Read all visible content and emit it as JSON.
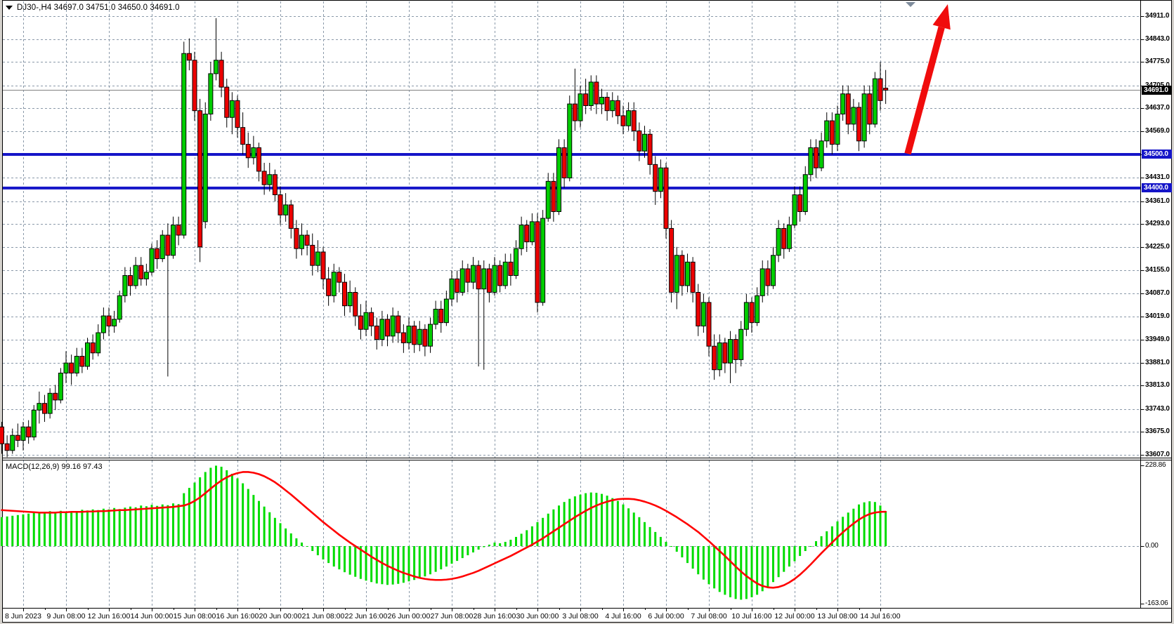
{
  "window": {
    "title": "DJ30-,H4  34697.0 34751.0 34650.0 34691.0",
    "symbol": "DJ30-",
    "timeframe": "H4"
  },
  "price_axis": {
    "ticks": [
      "34911.0",
      "34843.0",
      "34775.0",
      "34705.0",
      "34637.0",
      "34569.0",
      "34500.0",
      "34431.0",
      "34361.0",
      "34293.0",
      "34225.0",
      "34155.0",
      "34087.0",
      "34019.0",
      "33949.0",
      "33881.0",
      "33813.0",
      "33743.0",
      "33675.0",
      "33607.0"
    ],
    "tick_values": [
      34911,
      34843,
      34775,
      34705,
      34637,
      34569,
      34500,
      34431,
      34361,
      34293,
      34225,
      34155,
      34087,
      34019,
      33949,
      33881,
      33813,
      33743,
      33675,
      33607
    ],
    "current_price_label": "34691.0",
    "current_price_value": 34691.0
  },
  "levels": [
    {
      "label": "34500.0",
      "value": 34500
    },
    {
      "label": "34400.0",
      "value": 34400
    }
  ],
  "macd_panel": {
    "label": "MACD(12,26,9) 99.16 97.43",
    "axis_labels": [
      "228.86",
      "0.00",
      "-163.06"
    ],
    "axis_values": [
      228.86,
      0,
      -163.06
    ]
  },
  "time_axis": {
    "labels": [
      "8 Jun 2023",
      "9 Jun 08:00",
      "12 Jun 16:00",
      "14 Jun 00:00",
      "15 Jun 08:00",
      "16 Jun 16:00",
      "20 Jun 00:00",
      "21 Jun 08:00",
      "22 Jun 16:00",
      "26 Jun 00:00",
      "27 Jun 08:00",
      "28 Jun 16:00",
      "30 Jun 00:00",
      "3 Jul 08:00",
      "4 Jul 16:00",
      "6 Jul 00:00",
      "7 Jul 08:00",
      "10 Jul 16:00",
      "12 Jul 00:00",
      "13 Jul 08:00",
      "14 Jul 16:00"
    ]
  },
  "annotations": {
    "arrow": {
      "type": "up-arrow",
      "color": "#F00C0C"
    },
    "scroll_marker": {
      "type": "triangle-down",
      "color": "#7E8C9C"
    }
  },
  "colors": {
    "background": "#FFFFFF",
    "frame": "#D6D3CE",
    "border": "#000000",
    "grid": "#8A99A9",
    "bull": "#00CD00",
    "bear": "#EC0000",
    "wick": "#000000",
    "level_line": "#1515C8",
    "current_price_line": "#808080",
    "badge_current_bg": "#000000",
    "badge_level_bg": "#1515C8",
    "histogram": "#00DC00",
    "signal_line": "#FF0000"
  },
  "chart_data": {
    "type": "candlestick",
    "title": "DJ30- H4 with MACD(12,26,9)",
    "ohlc_current": {
      "open": 34697.0,
      "high": 34751.0,
      "low": 34650.0,
      "close": 34691.0
    },
    "price_range": [
      33607,
      34911
    ],
    "horizontal_lines": [
      34500,
      34400
    ],
    "grid_label_stride": 8,
    "candles": [
      [
        33690,
        33705,
        33610,
        33640
      ],
      [
        33640,
        33665,
        33600,
        33620
      ],
      [
        33620,
        33685,
        33610,
        33665
      ],
      [
        33665,
        33700,
        33630,
        33650
      ],
      [
        33650,
        33705,
        33620,
        33690
      ],
      [
        33690,
        33710,
        33640,
        33660
      ],
      [
        33660,
        33755,
        33650,
        33740
      ],
      [
        33740,
        33795,
        33700,
        33760
      ],
      [
        33760,
        33785,
        33705,
        33730
      ],
      [
        33730,
        33805,
        33715,
        33790
      ],
      [
        33790,
        33815,
        33740,
        33770
      ],
      [
        33770,
        33865,
        33760,
        33850
      ],
      [
        33850,
        33915,
        33820,
        33880
      ],
      [
        33880,
        33905,
        33815,
        33850
      ],
      [
        33850,
        33925,
        33840,
        33900
      ],
      [
        33900,
        33925,
        33850,
        33870
      ],
      [
        33870,
        33955,
        33860,
        33940
      ],
      [
        33940,
        33965,
        33890,
        33910
      ],
      [
        33910,
        33995,
        33900,
        33970
      ],
      [
        33970,
        34045,
        33950,
        34020
      ],
      [
        34020,
        34045,
        33960,
        33990
      ],
      [
        33990,
        34035,
        33970,
        34010
      ],
      [
        34010,
        34095,
        34000,
        34080
      ],
      [
        34080,
        34165,
        34060,
        34140
      ],
      [
        34140,
        34165,
        34080,
        34110
      ],
      [
        34110,
        34195,
        34100,
        34170
      ],
      [
        34170,
        34195,
        34110,
        34130
      ],
      [
        34130,
        34175,
        34110,
        34150
      ],
      [
        34150,
        34235,
        34140,
        34220
      ],
      [
        34220,
        34245,
        34160,
        34190
      ],
      [
        34190,
        34275,
        34180,
        34260
      ],
      [
        34260,
        34295,
        33840,
        34200
      ],
      [
        34200,
        34315,
        34190,
        34290
      ],
      [
        34290,
        34315,
        34230,
        34260
      ],
      [
        34260,
        34835,
        34250,
        34800
      ],
      [
        34800,
        34845,
        34750,
        34780
      ],
      [
        34780,
        34805,
        34600,
        34630
      ],
      [
        34630,
        34665,
        34180,
        34225
      ],
      [
        34300,
        34655,
        34280,
        34620
      ],
      [
        34620,
        34775,
        34600,
        34740
      ],
      [
        34740,
        34905,
        34720,
        34780
      ],
      [
        34780,
        34805,
        34670,
        34700
      ],
      [
        34700,
        34725,
        34580,
        34610
      ],
      [
        34610,
        34685,
        34560,
        34660
      ],
      [
        34660,
        34675,
        34550,
        34580
      ],
      [
        34580,
        34625,
        34500,
        34530
      ],
      [
        34530,
        34565,
        34460,
        34490
      ],
      [
        34490,
        34555,
        34470,
        34520
      ],
      [
        34520,
        34535,
        34420,
        34450
      ],
      [
        34450,
        34475,
        34380,
        34410
      ],
      [
        34410,
        34475,
        34390,
        34440
      ],
      [
        34440,
        34455,
        34360,
        34380
      ],
      [
        34380,
        34405,
        34290,
        34320
      ],
      [
        34320,
        34385,
        34300,
        34350
      ],
      [
        34350,
        34365,
        34250,
        34280
      ],
      [
        34280,
        34305,
        34190,
        34220
      ],
      [
        34220,
        34295,
        34200,
        34260
      ],
      [
        34260,
        34275,
        34200,
        34230
      ],
      [
        34230,
        34265,
        34140,
        34170
      ],
      [
        34170,
        34245,
        34150,
        34210
      ],
      [
        34210,
        34225,
        34100,
        34130
      ],
      [
        34130,
        34165,
        34050,
        34080
      ],
      [
        34080,
        34175,
        34060,
        34150
      ],
      [
        34150,
        34165,
        34090,
        34120
      ],
      [
        34120,
        34145,
        34020,
        34050
      ],
      [
        34050,
        34125,
        34030,
        34090
      ],
      [
        34090,
        34105,
        33990,
        34020
      ],
      [
        34020,
        34055,
        33950,
        33980
      ],
      [
        33980,
        34065,
        33960,
        34030
      ],
      [
        34030,
        34045,
        33960,
        33990
      ],
      [
        33990,
        34015,
        33920,
        33950
      ],
      [
        33950,
        34035,
        33930,
        34010
      ],
      [
        34010,
        34025,
        33930,
        33960
      ],
      [
        33960,
        34045,
        33940,
        34020
      ],
      [
        34020,
        34035,
        33940,
        33970
      ],
      [
        33970,
        33995,
        33910,
        33940
      ],
      [
        33940,
        34015,
        33920,
        33990
      ],
      [
        33990,
        34005,
        33910,
        33935
      ],
      [
        33935,
        34005,
        33915,
        33980
      ],
      [
        33980,
        33995,
        33900,
        33930
      ],
      [
        33930,
        34015,
        33910,
        33995
      ],
      [
        33995,
        34065,
        33980,
        34040
      ],
      [
        34040,
        34065,
        33970,
        34000
      ],
      [
        34000,
        34095,
        33990,
        34070
      ],
      [
        34070,
        34155,
        34050,
        34130
      ],
      [
        34130,
        34155,
        34060,
        34090
      ],
      [
        34090,
        34185,
        34080,
        34160
      ],
      [
        34160,
        34175,
        34090,
        34120
      ],
      [
        34120,
        34195,
        34100,
        34170
      ],
      [
        34170,
        34185,
        33870,
        34100
      ],
      [
        34100,
        34185,
        33860,
        34160
      ],
      [
        34160,
        34175,
        34060,
        34090
      ],
      [
        34090,
        34195,
        34080,
        34170
      ],
      [
        34170,
        34185,
        34090,
        34110
      ],
      [
        34110,
        34205,
        34100,
        34180
      ],
      [
        34180,
        34205,
        34110,
        34140
      ],
      [
        34140,
        34245,
        34130,
        34220
      ],
      [
        34220,
        34315,
        34200,
        34290
      ],
      [
        34290,
        34305,
        34210,
        34240
      ],
      [
        34240,
        34325,
        34230,
        34300
      ],
      [
        34300,
        34325,
        34030,
        34060
      ],
      [
        34060,
        34335,
        34050,
        34310
      ],
      [
        34310,
        34445,
        34300,
        34420
      ],
      [
        34420,
        34445,
        34300,
        34330
      ],
      [
        34330,
        34545,
        34320,
        34520
      ],
      [
        34520,
        34545,
        34400,
        34430
      ],
      [
        34430,
        34675,
        34420,
        34650
      ],
      [
        34650,
        34755,
        34570,
        34600
      ],
      [
        34600,
        34705,
        34580,
        34680
      ],
      [
        34680,
        34725,
        34620,
        34645
      ],
      [
        34645,
        34735,
        34630,
        34715
      ],
      [
        34715,
        34735,
        34620,
        34650
      ],
      [
        34650,
        34695,
        34620,
        34670
      ],
      [
        34670,
        34685,
        34600,
        34630
      ],
      [
        34630,
        34685,
        34610,
        34660
      ],
      [
        34660,
        34675,
        34590,
        34615
      ],
      [
        34615,
        34645,
        34560,
        34585
      ],
      [
        34585,
        34655,
        34570,
        34630
      ],
      [
        34630,
        34655,
        34540,
        34570
      ],
      [
        34570,
        34595,
        34480,
        34510
      ],
      [
        34510,
        34585,
        34490,
        34560
      ],
      [
        34560,
        34575,
        34440,
        34470
      ],
      [
        34470,
        34495,
        34350,
        34390
      ],
      [
        34390,
        34485,
        34370,
        34460
      ],
      [
        34460,
        34475,
        34250,
        34280
      ],
      [
        34280,
        34305,
        34060,
        34090
      ],
      [
        34090,
        34225,
        34040,
        34200
      ],
      [
        34200,
        34215,
        34080,
        34110
      ],
      [
        34110,
        34205,
        34090,
        34180
      ],
      [
        34180,
        34195,
        34060,
        34090
      ],
      [
        34090,
        34115,
        33960,
        33990
      ],
      [
        33990,
        34085,
        33970,
        34060
      ],
      [
        34060,
        34075,
        33900,
        33930
      ],
      [
        33930,
        33965,
        33830,
        33860
      ],
      [
        33860,
        33965,
        33840,
        33940
      ],
      [
        33940,
        33955,
        33850,
        33880
      ],
      [
        33880,
        33975,
        33820,
        33950
      ],
      [
        33950,
        33965,
        33850,
        33890
      ],
      [
        33890,
        34005,
        33870,
        33980
      ],
      [
        33980,
        34085,
        33960,
        34060
      ],
      [
        34060,
        34075,
        33970,
        34000
      ],
      [
        34000,
        34105,
        33990,
        34080
      ],
      [
        34080,
        34185,
        34060,
        34160
      ],
      [
        34160,
        34185,
        34080,
        34110
      ],
      [
        34110,
        34225,
        34100,
        34200
      ],
      [
        34200,
        34305,
        34180,
        34280
      ],
      [
        34280,
        34295,
        34190,
        34220
      ],
      [
        34220,
        34315,
        34210,
        34290
      ],
      [
        34290,
        34405,
        34280,
        34380
      ],
      [
        34380,
        34405,
        34300,
        34330
      ],
      [
        34330,
        34465,
        34320,
        34440
      ],
      [
        34440,
        34545,
        34420,
        34520
      ],
      [
        34520,
        34545,
        34430,
        34460
      ],
      [
        34460,
        34565,
        34450,
        34540
      ],
      [
        34540,
        34625,
        34520,
        34600
      ],
      [
        34600,
        34625,
        34500,
        34530
      ],
      [
        34530,
        34645,
        34510,
        34620
      ],
      [
        34620,
        34705,
        34600,
        34680
      ],
      [
        34680,
        34705,
        34560,
        34590
      ],
      [
        34590,
        34665,
        34570,
        34640
      ],
      [
        34640,
        34655,
        34510,
        34540
      ],
      [
        34540,
        34705,
        34520,
        34680
      ],
      [
        34680,
        34705,
        34560,
        34590
      ],
      [
        34590,
        34745,
        34580,
        34725
      ],
      [
        34725,
        34775,
        34630,
        34660
      ],
      [
        34697,
        34751,
        34650,
        34691
      ]
    ],
    "macd": {
      "range": [
        -163.06,
        228.86
      ],
      "current": [
        99.16,
        97.43
      ],
      "histogram": [
        82,
        84,
        86,
        88,
        90,
        92,
        94,
        93,
        96,
        99,
        97,
        100,
        98,
        96,
        99,
        103,
        101,
        104,
        102,
        106,
        104,
        108,
        105,
        109,
        112,
        110,
        115,
        113,
        117,
        114,
        118,
        116,
        121,
        119,
        150,
        165,
        180,
        195,
        210,
        222,
        228,
        225,
        215,
        205,
        192,
        178,
        162,
        145,
        128,
        112,
        96,
        80,
        65,
        50,
        36,
        22,
        10,
        -2,
        -14,
        -26,
        -38,
        -48,
        -58,
        -66,
        -74,
        -81,
        -87,
        -93,
        -98,
        -102,
        -106,
        -108,
        -110,
        -109,
        -107,
        -104,
        -100,
        -96,
        -91,
        -86,
        -80,
        -73,
        -66,
        -58,
        -50,
        -42,
        -34,
        -26,
        -18,
        -10,
        -3,
        4,
        10,
        8,
        12,
        18,
        26,
        35,
        45,
        56,
        68,
        80,
        92,
        104,
        115,
        125,
        134,
        141,
        146,
        150,
        152,
        151,
        148,
        143,
        136,
        128,
        118,
        107,
        95,
        82,
        68,
        54,
        40,
        26,
        12,
        -2,
        -16,
        -32,
        -48,
        -64,
        -80,
        -95,
        -108,
        -120,
        -130,
        -138,
        -145,
        -150,
        -152,
        -150,
        -145,
        -138,
        -128,
        -116,
        -102,
        -88,
        -73,
        -58,
        -43,
        -28,
        -14,
        0,
        14,
        28,
        42,
        56,
        70,
        83,
        95,
        106,
        118,
        124,
        127,
        125,
        115,
        99.16
      ],
      "signal": [
        102,
        101,
        100,
        99,
        98,
        97,
        96,
        95,
        95,
        95,
        95,
        96,
        96,
        97,
        97,
        97,
        98,
        98,
        99,
        99,
        100,
        101,
        102,
        102,
        103,
        104,
        105,
        106,
        107,
        108,
        109,
        110,
        111,
        113,
        115,
        120,
        128,
        138,
        150,
        163,
        175,
        186,
        195,
        202,
        207,
        210,
        210,
        208,
        204,
        198,
        190,
        181,
        170,
        158,
        146,
        133,
        120,
        107,
        94,
        81,
        68,
        56,
        44,
        32,
        21,
        10,
        0,
        -10,
        -20,
        -30,
        -39,
        -48,
        -56,
        -63,
        -70,
        -76,
        -81,
        -86,
        -90,
        -93,
        -95,
        -96,
        -96,
        -95,
        -93,
        -90,
        -86,
        -81,
        -76,
        -70,
        -63,
        -56,
        -49,
        -42,
        -35,
        -28,
        -20,
        -12,
        -4,
        4,
        13,
        22,
        32,
        42,
        52,
        62,
        72,
        82,
        91,
        100,
        108,
        115,
        121,
        126,
        130,
        133,
        134,
        134,
        133,
        130,
        126,
        121,
        115,
        108,
        100,
        91,
        82,
        72,
        62,
        51,
        40,
        27,
        14,
        0,
        -14,
        -28,
        -43,
        -58,
        -72,
        -85,
        -96,
        -106,
        -113,
        -117,
        -118,
        -116,
        -111,
        -103,
        -93,
        -81,
        -67,
        -52,
        -36,
        -20,
        -5,
        10,
        25,
        39,
        52,
        64,
        75,
        84,
        91,
        95,
        97,
        97.43
      ]
    }
  }
}
